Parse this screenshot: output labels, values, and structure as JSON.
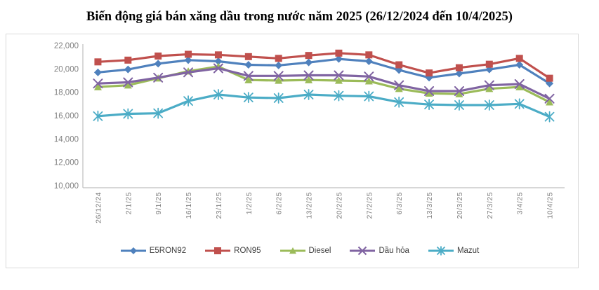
{
  "title": "Biến động giá bán xăng dầu trong nước năm 2025 (26/12/2024 đến 10/4/2025)",
  "colors": {
    "e5ron92": "#4F81BD",
    "ron95": "#C0504D",
    "diesel": "#9BBB59",
    "dau_hoa": "#8064A2",
    "mazut": "#4BACC6",
    "axis_line": "#bfbfbf",
    "tick_text": "#7f7f7f",
    "frame_border": "#d9d9d9"
  },
  "chart_data": {
    "type": "line",
    "title": "Biến động giá bán xăng dầu trong nước năm 2025 (26/12/2024 đến 10/4/2025)",
    "xlabel": "",
    "ylabel": "",
    "ylim": [
      10000,
      22000
    ],
    "ytick_step": 2000,
    "ytick_labels": [
      "10,000",
      "12,000",
      "14,000",
      "16,000",
      "18,000",
      "20,000",
      "22,000"
    ],
    "grid": false,
    "legend_position": "bottom",
    "categories": [
      "26/12/24",
      "2/1/25",
      "9/1/25",
      "16/1/25",
      "23/1/25",
      "1/2/25",
      "6/2/25",
      "13/2/25",
      "20/2/25",
      "27/2/25",
      "6/3/25",
      "13/3/25",
      "20/3/25",
      "27/3/25",
      "3/4/25",
      "10/4/25"
    ],
    "series": [
      {
        "name": "E5RON92",
        "color": "#4F81BD",
        "marker": "diamond",
        "values": [
          19700,
          19950,
          20450,
          20750,
          20650,
          20350,
          20300,
          20550,
          20850,
          20650,
          19900,
          19250,
          19600,
          19950,
          20350,
          18750
        ]
      },
      {
        "name": "RON95",
        "color": "#C0504D",
        "marker": "square",
        "values": [
          20600,
          20750,
          21100,
          21250,
          21200,
          21050,
          20900,
          21150,
          21350,
          21200,
          20350,
          19650,
          20100,
          20400,
          20900,
          19200
        ]
      },
      {
        "name": "Diesel",
        "color": "#9BBB59",
        "marker": "triangle",
        "values": [
          18450,
          18600,
          19200,
          19800,
          20200,
          19050,
          19000,
          19050,
          19000,
          18950,
          18300,
          17900,
          17850,
          18300,
          18450,
          17150
        ]
      },
      {
        "name": "Dầu hỏa",
        "color": "#8064A2",
        "marker": "x",
        "values": [
          18750,
          18850,
          19250,
          19700,
          20050,
          19400,
          19400,
          19450,
          19450,
          19350,
          18600,
          18100,
          18100,
          18600,
          18700,
          17450
        ]
      },
      {
        "name": "Mazut",
        "color": "#4BACC6",
        "marker": "asterisk",
        "values": [
          15950,
          16150,
          16200,
          17250,
          17800,
          17550,
          17500,
          17800,
          17700,
          17650,
          17150,
          16950,
          16900,
          16900,
          17000,
          15900
        ]
      }
    ]
  }
}
